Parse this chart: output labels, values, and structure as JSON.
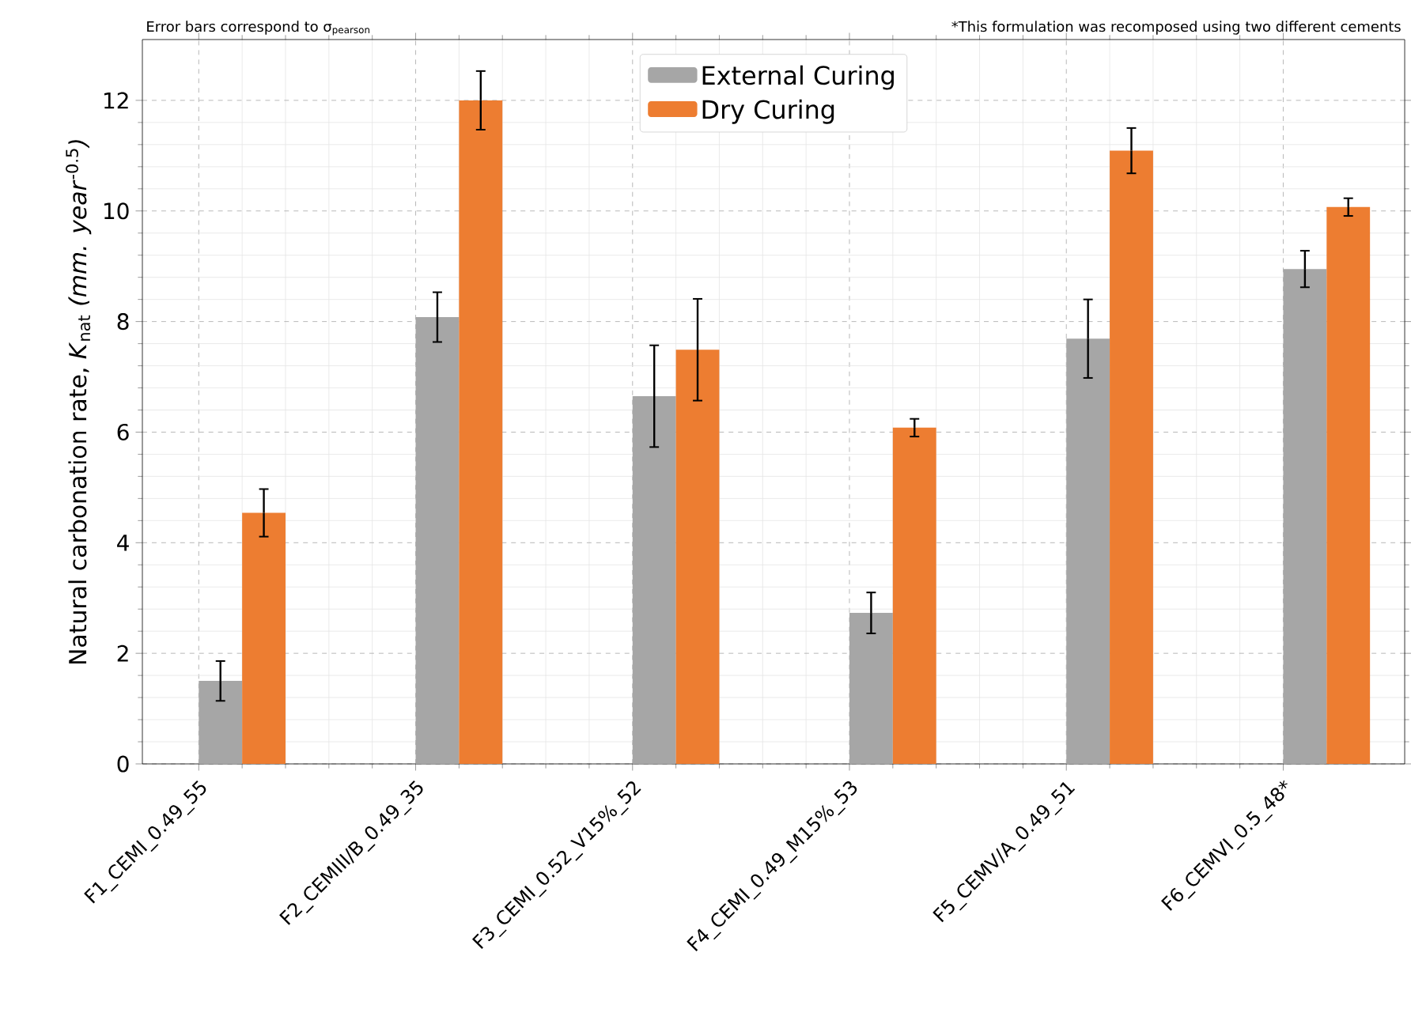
{
  "chart_data": {
    "type": "bar",
    "ylabel": "Natural carbonation rate, *K*$_{nat}$ *(mm. year*$^{-0.5}$*)*",
    "categories": [
      "F1_CEMI_0.49_55",
      "F2_CEMIII/B_0.49_35",
      "F3_CEMI_0.52_V15%_52",
      "F4_CEMI_0.49_M15%_53",
      "F5_CEMV/A_0.49_51",
      "F6_CEMVI_0.5_48*"
    ],
    "series": [
      {
        "name": "External Curing",
        "color": "#a6a6a6",
        "values": [
          1.5,
          8.08,
          6.65,
          2.73,
          7.69,
          8.95
        ],
        "errors": [
          0.36,
          0.45,
          0.92,
          0.37,
          0.71,
          0.33
        ]
      },
      {
        "name": "Dry Curing",
        "color": "#ed7d31",
        "values": [
          4.54,
          12.0,
          7.49,
          6.08,
          11.09,
          10.07
        ],
        "errors": [
          0.43,
          0.53,
          0.92,
          0.16,
          0.41,
          0.16
        ]
      }
    ],
    "ylim": [
      0,
      13.1
    ],
    "yticks": [
      0,
      2,
      4,
      6,
      8,
      10,
      12
    ],
    "grid": true,
    "legend": "top",
    "annotations": [
      "Error bars correspond to σ$_{pearson}$",
      "*This formulation was recomposed using two different cements"
    ]
  }
}
